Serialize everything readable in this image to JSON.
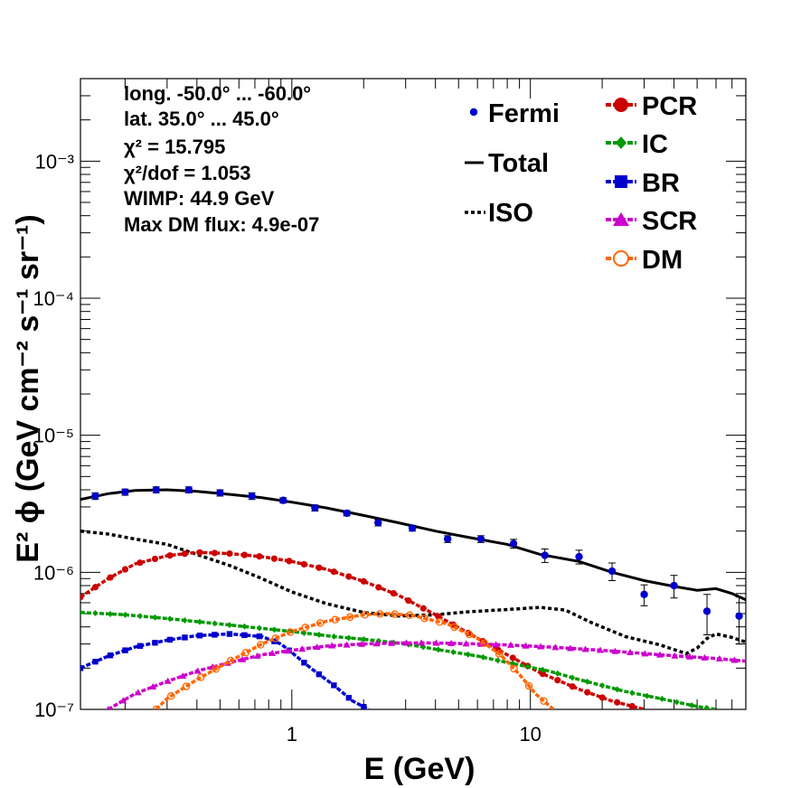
{
  "chart_data": {
    "type": "line",
    "xscale": "log",
    "yscale": "log",
    "xlim": [
      0.13,
      80
    ],
    "ylim": [
      1e-07,
      0.004
    ],
    "xlabel": "E (GeV)",
    "ylabel": "E² ϕ (GeV cm⁻² s⁻¹ sr⁻¹)",
    "x_ticks": [
      {
        "value": 1,
        "label": "1"
      },
      {
        "value": 10,
        "label": "10"
      }
    ],
    "y_ticks": [
      {
        "value": 1e-07,
        "label": "10⁻⁷"
      },
      {
        "value": 1e-06,
        "label": "10⁻⁶"
      },
      {
        "value": 1e-05,
        "label": "10⁻⁵"
      },
      {
        "value": 0.0001,
        "label": "10⁻⁴"
      },
      {
        "value": 0.001,
        "label": "10⁻³"
      }
    ],
    "annotations": [
      "long. -50.0° ... -60.0°",
      "lat. 35.0° ... 45.0°",
      "χ² = 15.795",
      "χ²/dof = 1.053",
      "WIMP: 44.9 GeV",
      "Max DM flux: 4.9e-07"
    ],
    "legend_left": [
      {
        "name": "Fermi",
        "style": "points"
      },
      {
        "name": "Total",
        "style": "solid"
      },
      {
        "name": "ISO",
        "style": "dotted"
      }
    ],
    "legend_right": [
      {
        "name": "PCR",
        "color": "#cc0000",
        "marker": "circle"
      },
      {
        "name": "IC",
        "color": "#009900",
        "marker": "diamond"
      },
      {
        "name": "BR",
        "color": "#0000cc",
        "marker": "square"
      },
      {
        "name": "SCR",
        "color": "#cc00cc",
        "marker": "triangle"
      },
      {
        "name": "DM",
        "color": "#ff6600",
        "marker": "open-circle"
      }
    ],
    "fermi": {
      "name": "Fermi",
      "color": "#0000cc",
      "points": [
        {
          "x": 0.15,
          "y": 3.6e-06,
          "err": 2e-07
        },
        {
          "x": 0.2,
          "y": 3.85e-06,
          "err": 2e-07
        },
        {
          "x": 0.27,
          "y": 4e-06,
          "err": 2e-07
        },
        {
          "x": 0.37,
          "y": 4e-06,
          "err": 2e-07
        },
        {
          "x": 0.5,
          "y": 3.8e-06,
          "err": 2e-07
        },
        {
          "x": 0.68,
          "y": 3.6e-06,
          "err": 2e-07
        },
        {
          "x": 0.92,
          "y": 3.35e-06,
          "err": 1.5e-07
        },
        {
          "x": 1.25,
          "y": 2.95e-06,
          "err": 1.5e-07
        },
        {
          "x": 1.7,
          "y": 2.7e-06,
          "err": 1.2e-07
        },
        {
          "x": 2.3,
          "y": 2.3e-06,
          "err": 1.2e-07
        },
        {
          "x": 3.2,
          "y": 2.1e-06,
          "err": 1e-07
        },
        {
          "x": 4.5,
          "y": 1.75e-06,
          "err": 1e-07
        },
        {
          "x": 6.2,
          "y": 1.75e-06,
          "err": 1e-07
        },
        {
          "x": 8.5,
          "y": 1.62e-06,
          "err": 1.2e-07
        },
        {
          "x": 11.5,
          "y": 1.33e-06,
          "err": 1.5e-07
        },
        {
          "x": 16,
          "y": 1.3e-06,
          "err": 1.5e-07
        },
        {
          "x": 22,
          "y": 1.02e-06,
          "err": 1.5e-07
        },
        {
          "x": 30,
          "y": 6.9e-07,
          "err": 1.2e-07
        },
        {
          "x": 40,
          "y": 8e-07,
          "err": 1.5e-07
        },
        {
          "x": 55,
          "y": 5.2e-07,
          "err": 1.7e-07
        },
        {
          "x": 75,
          "y": 4.8e-07,
          "err": 1.8e-07
        }
      ]
    },
    "total": {
      "name": "Total",
      "color": "#000000",
      "x": [
        0.13,
        0.17,
        0.22,
        0.3,
        0.4,
        0.55,
        0.75,
        1.0,
        1.4,
        2.0,
        2.8,
        4.0,
        5.5,
        8.0,
        11,
        16,
        22,
        30,
        40,
        50,
        60,
        70,
        80
      ],
      "y": [
        3.4e-06,
        3.75e-06,
        3.95e-06,
        4e-06,
        3.9e-06,
        3.7e-06,
        3.5e-06,
        3.25e-06,
        2.95e-06,
        2.6e-06,
        2.3e-06,
        2e-06,
        1.8e-06,
        1.6e-06,
        1.35e-06,
        1.2e-06,
        1e-06,
        8.7e-07,
        7.9e-07,
        7.4e-07,
        7.6e-07,
        7e-07,
        6.3e-07
      ]
    },
    "iso": {
      "name": "ISO",
      "color": "#000000",
      "x": [
        0.13,
        0.17,
        0.22,
        0.3,
        0.4,
        0.55,
        0.75,
        1.0,
        1.4,
        2.0,
        2.8,
        4.0,
        5.5,
        8.0,
        11,
        14,
        18,
        25,
        35,
        45,
        50,
        55,
        60,
        70,
        80
      ],
      "y": [
        2e-06,
        1.9e-06,
        1.75e-06,
        1.6e-06,
        1.35e-06,
        1.12e-06,
        9e-07,
        7.2e-07,
        5.9e-07,
        5.1e-07,
        4.8e-07,
        4.9e-07,
        5.15e-07,
        5.35e-07,
        5.55e-07,
        5.3e-07,
        4.3e-07,
        3.4e-07,
        2.95e-07,
        2.55e-07,
        2.8e-07,
        3.3e-07,
        3.55e-07,
        3.35e-07,
        3.1e-07
      ]
    },
    "series": [
      {
        "name": "PCR",
        "color": "#cc0000",
        "marker": "circle",
        "x": [
          0.13,
          0.17,
          0.22,
          0.3,
          0.4,
          0.55,
          0.75,
          1.0,
          1.4,
          2.0,
          2.8,
          4.0,
          5.5,
          8.0,
          11,
          16,
          22,
          30
        ],
        "y": [
          6.6e-07,
          9e-07,
          1.15e-06,
          1.32e-06,
          1.4e-06,
          1.37e-06,
          1.3e-06,
          1.2e-06,
          1.05e-06,
          8.6e-07,
          6.8e-07,
          4.9e-07,
          3.6e-07,
          2.5e-07,
          1.85e-07,
          1.4e-07,
          1.15e-07,
          1e-07
        ]
      },
      {
        "name": "IC",
        "color": "#009900",
        "marker": "diamond",
        "x": [
          0.13,
          0.2,
          0.3,
          0.5,
          0.75,
          1.0,
          1.5,
          2.0,
          3.0,
          4.0,
          6.0,
          8.0,
          12,
          16,
          25,
          35,
          50,
          60
        ],
        "y": [
          5.1e-07,
          4.9e-07,
          4.6e-07,
          4.2e-07,
          3.9e-07,
          3.7e-07,
          3.4e-07,
          3.25e-07,
          3e-07,
          2.75e-07,
          2.45e-07,
          2.2e-07,
          1.9e-07,
          1.65e-07,
          1.35e-07,
          1.2e-07,
          1.05e-07,
          1e-07
        ]
      },
      {
        "name": "BR",
        "color": "#0000cc",
        "marker": "square",
        "x": [
          0.13,
          0.17,
          0.22,
          0.3,
          0.4,
          0.55,
          0.75,
          0.9,
          1.0,
          1.2,
          1.5,
          1.8,
          2.1
        ],
        "y": [
          2e-07,
          2.45e-07,
          2.85e-07,
          3.2e-07,
          3.45e-07,
          3.55e-07,
          3.4e-07,
          3e-07,
          2.6e-07,
          2e-07,
          1.5e-07,
          1.15e-07,
          1e-07
        ]
      },
      {
        "name": "SCR",
        "color": "#cc00cc",
        "marker": "triangle",
        "x": [
          0.17,
          0.22,
          0.3,
          0.4,
          0.55,
          0.75,
          1.0,
          1.4,
          2.0,
          2.8,
          4.0,
          6.0,
          8.0,
          12,
          20,
          35,
          60,
          80
        ],
        "y": [
          1e-07,
          1.3e-07,
          1.6e-07,
          1.9e-07,
          2.2e-07,
          2.5e-07,
          2.7e-07,
          2.9e-07,
          3e-07,
          3.05e-07,
          3.05e-07,
          3e-07,
          2.95e-07,
          2.85e-07,
          2.7e-07,
          2.5e-07,
          2.35e-07,
          2.25e-07
        ]
      },
      {
        "name": "DM",
        "color": "#ff6600",
        "marker": "open-circle",
        "x": [
          0.27,
          0.3,
          0.4,
          0.55,
          0.75,
          1.0,
          1.4,
          2.0,
          2.5,
          3.2,
          4.5,
          6.0,
          7.5,
          9.0,
          10.5,
          12.5
        ],
        "y": [
          1e-07,
          1.2e-07,
          1.65e-07,
          2.25e-07,
          3e-07,
          3.7e-07,
          4.4e-07,
          4.9e-07,
          5e-07,
          4.85e-07,
          4.2e-07,
          3.3e-07,
          2.5e-07,
          1.8e-07,
          1.3e-07,
          1e-07
        ]
      }
    ]
  }
}
